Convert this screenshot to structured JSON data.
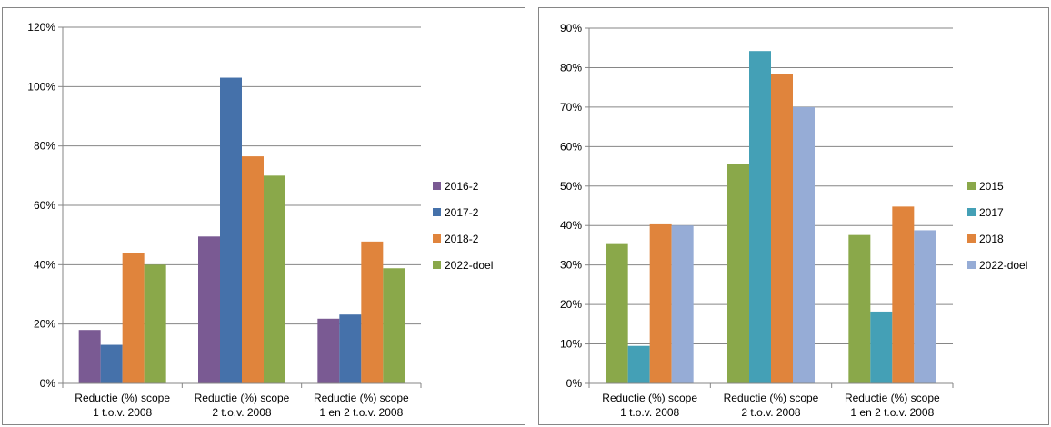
{
  "chart_data": [
    {
      "type": "bar",
      "categories": [
        [
          "Reductie (%) scope",
          "1 t.o.v. 2008"
        ],
        [
          "Reductie (%) scope",
          "2 t.o.v. 2008"
        ],
        [
          "Reductie (%) scope",
          "1 en 2 t.o.v. 2008"
        ]
      ],
      "series": [
        {
          "name": "2016-2",
          "color": "#7a5a93",
          "values": [
            18,
            49.5,
            21.8
          ]
        },
        {
          "name": "2017-2",
          "color": "#4571aa",
          "values": [
            13,
            103,
            23.2
          ]
        },
        {
          "name": "2018-2",
          "color": "#e0843c",
          "values": [
            44,
            76.5,
            47.8
          ]
        },
        {
          "name": "2022-doel",
          "color": "#8aa84a",
          "values": [
            40,
            70,
            38.8
          ]
        }
      ],
      "ylim": [
        0,
        120
      ],
      "yticks": [
        0,
        20,
        40,
        60,
        80,
        100,
        120
      ],
      "ytick_labels": [
        "0%",
        "20%",
        "40%",
        "60%",
        "80%",
        "100%",
        "120%"
      ],
      "grid": true,
      "legend_position": "right"
    },
    {
      "type": "bar",
      "categories": [
        [
          "Reductie (%) scope",
          "1 t.o.v. 2008"
        ],
        [
          "Reductie (%) scope",
          "2 t.o.v. 2008"
        ],
        [
          "Reductie (%) scope",
          "1 en 2 t.o.v. 2008"
        ]
      ],
      "series": [
        {
          "name": "2015",
          "color": "#8aa84a",
          "values": [
            35.3,
            55.7,
            37.6
          ]
        },
        {
          "name": "2017",
          "color": "#44a0b6",
          "values": [
            9.5,
            84.2,
            18.2
          ]
        },
        {
          "name": "2018",
          "color": "#e0843c",
          "values": [
            40.3,
            78.3,
            44.8
          ]
        },
        {
          "name": "2022-doel",
          "color": "#96acd6",
          "values": [
            40,
            70,
            38.8
          ]
        }
      ],
      "ylim": [
        0,
        90
      ],
      "yticks": [
        0,
        10,
        20,
        30,
        40,
        50,
        60,
        70,
        80,
        90
      ],
      "ytick_labels": [
        "0%",
        "10%",
        "20%",
        "30%",
        "40%",
        "50%",
        "60%",
        "70%",
        "80%",
        "90%"
      ],
      "grid": true,
      "legend_position": "right"
    }
  ]
}
